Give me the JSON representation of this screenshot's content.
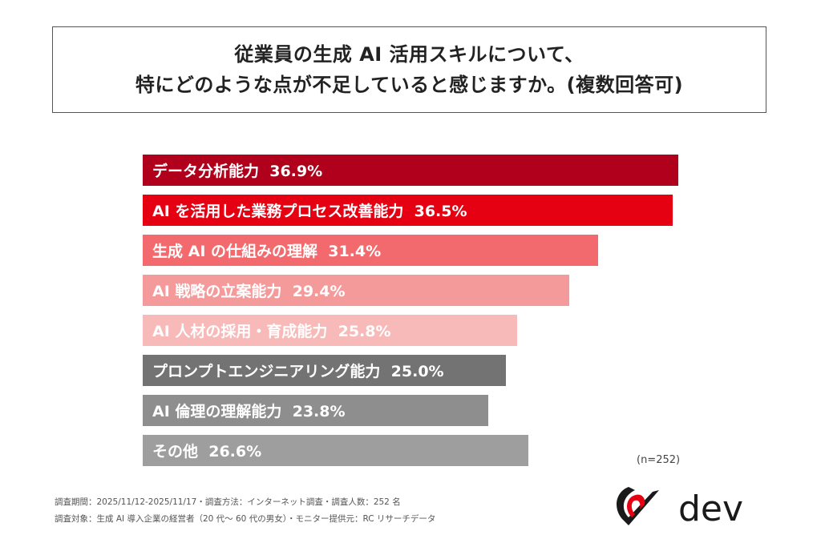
{
  "title": {
    "line1": "従業員の生成 AI 活用スキルについて、",
    "line2": "特にどのような点が不足していると感じますか。(複数回答可)"
  },
  "chart_data": {
    "type": "bar",
    "orientation": "horizontal",
    "categories": [
      "データ分析能力",
      "AI を活用した業務プロセス改善能力",
      "生成 AI の仕組みの理解",
      "AI 戦略の立案能力",
      "AI 人材の採用・育成能力",
      "プロンプトエンジニアリング能力",
      "AI 倫理の理解能力",
      "その他"
    ],
    "values": [
      36.9,
      36.5,
      31.4,
      29.4,
      25.8,
      25.0,
      23.8,
      26.6
    ],
    "value_labels": [
      "36.9%",
      "36.5%",
      "31.4%",
      "29.4%",
      "25.8%",
      "25.0%",
      "23.8%",
      "26.6%"
    ],
    "colors": [
      "#b0001b",
      "#e50012",
      "#f26a6d",
      "#f59a9b",
      "#f8b9b9",
      "#737373",
      "#8e8e8e",
      "#9e9e9e"
    ],
    "unit": "%",
    "grid": false,
    "sample_note": "(n=252)"
  },
  "footer": {
    "line1": "調査期間：2025/11/12-2025/11/17・調査方法：インターネット調査・調査人数：252 名",
    "line2": "調査対象：生成 AI 導入企業の経営者（20 代〜 60 代の男女）・モニター提供元：RC リサーチデータ"
  },
  "logo": {
    "text": "dev",
    "accent": "#e50012"
  }
}
